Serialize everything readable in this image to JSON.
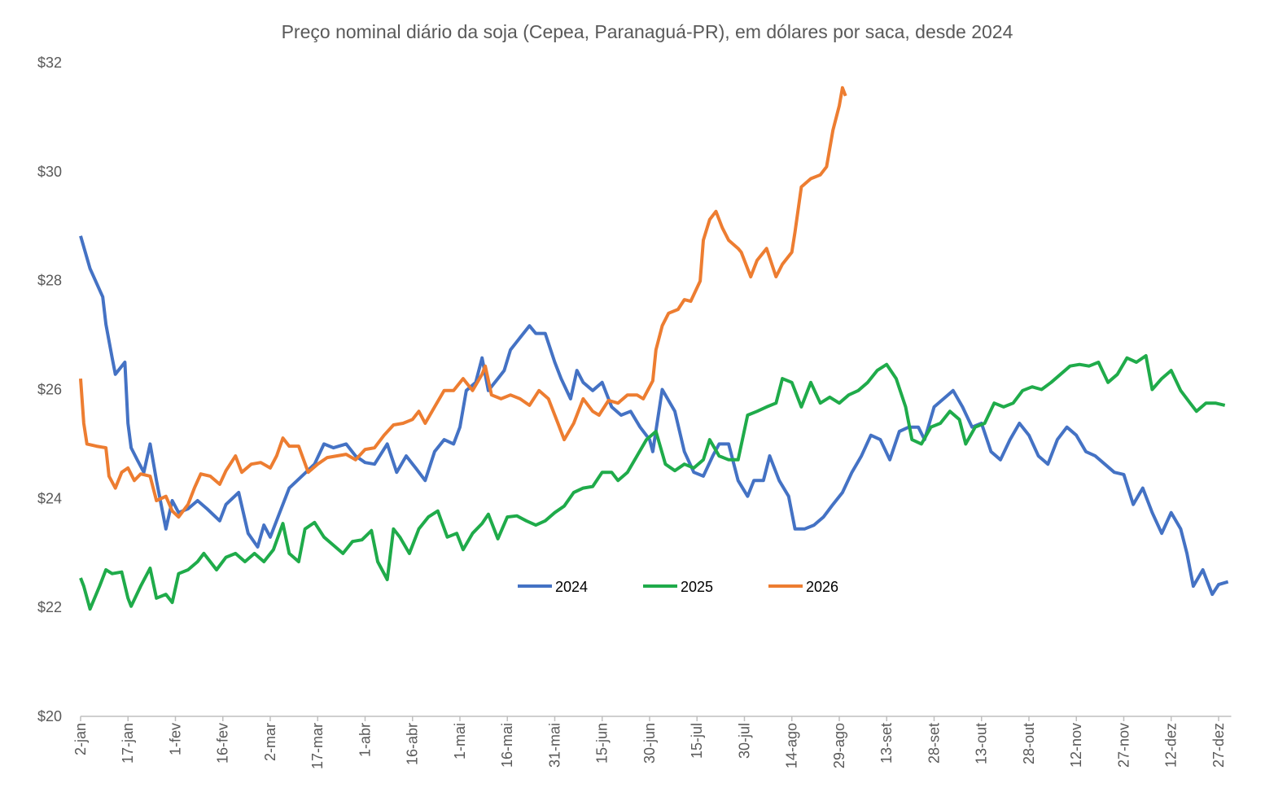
{
  "chart_data": {
    "type": "line",
    "title": "Preço nominal diário da soja (Cepea, Paranaguá-PR), em dólares por saca, desde 2024",
    "xlim": [
      0,
      364
    ],
    "xticks": [
      {
        "value": 0,
        "label": "2-jan"
      },
      {
        "value": 15,
        "label": "17-jan"
      },
      {
        "value": 30,
        "label": "1-fev"
      },
      {
        "value": 45,
        "label": "16-fev"
      },
      {
        "value": 60,
        "label": "2-mar"
      },
      {
        "value": 75,
        "label": "17-mar"
      },
      {
        "value": 90,
        "label": "1-abr"
      },
      {
        "value": 105,
        "label": "16-abr"
      },
      {
        "value": 120,
        "label": "1-mai"
      },
      {
        "value": 135,
        "label": "16-mai"
      },
      {
        "value": 150,
        "label": "31-mai"
      },
      {
        "value": 165,
        "label": "15-jun"
      },
      {
        "value": 180,
        "label": "30-jun"
      },
      {
        "value": 195,
        "label": "15-jul"
      },
      {
        "value": 210,
        "label": "30-jul"
      },
      {
        "value": 225,
        "label": "14-ago"
      },
      {
        "value": 240,
        "label": "29-ago"
      },
      {
        "value": 255,
        "label": "13-set"
      },
      {
        "value": 270,
        "label": "28-set"
      },
      {
        "value": 285,
        "label": "13-out"
      },
      {
        "value": 300,
        "label": "28-out"
      },
      {
        "value": 315,
        "label": "12-nov"
      },
      {
        "value": 330,
        "label": "27-nov"
      },
      {
        "value": 345,
        "label": "12-dez"
      },
      {
        "value": 360,
        "label": "27-dez"
      }
    ],
    "ylim": [
      20,
      32
    ],
    "yticks": [
      {
        "value": 20,
        "label": "$20"
      },
      {
        "value": 22,
        "label": "$22"
      },
      {
        "value": 24,
        "label": "$24"
      },
      {
        "value": 26,
        "label": "$26"
      },
      {
        "value": 28,
        "label": "$28"
      },
      {
        "value": 30,
        "label": "$30"
      },
      {
        "value": 32,
        "label": "$32"
      }
    ],
    "grid": false,
    "legend": "center",
    "series": [
      {
        "name": "2024",
        "color": "#4472c4",
        "x": [
          0,
          3,
          7,
          8,
          10,
          11,
          14,
          15,
          16,
          18,
          20,
          22,
          24,
          27,
          29,
          31,
          34,
          37,
          40,
          44,
          46,
          50,
          53,
          56,
          58,
          60,
          63,
          66,
          70,
          74,
          77,
          80,
          84,
          87,
          90,
          93,
          97,
          100,
          103,
          106,
          109,
          112,
          115,
          118,
          120,
          122,
          125,
          127,
          129,
          132,
          134,
          136,
          139,
          142,
          144,
          147,
          150,
          152,
          155,
          157,
          159,
          162,
          165,
          168,
          171,
          174,
          177,
          180,
          181,
          184,
          188,
          191,
          194,
          197,
          200,
          202,
          205,
          208,
          211,
          213,
          216,
          218,
          221,
          224,
          226,
          229,
          232,
          235,
          238,
          241,
          244,
          247,
          250,
          253,
          256,
          259,
          262,
          265,
          267,
          270,
          273,
          276,
          279,
          282,
          285,
          288,
          291,
          294,
          297,
          300,
          303,
          306,
          309,
          312,
          315,
          318,
          321,
          324,
          327,
          330,
          333,
          336,
          339,
          342,
          345,
          348,
          350,
          352,
          355,
          358,
          360,
          363
        ],
        "values": [
          28.82,
          28.22,
          27.7,
          27.2,
          26.58,
          26.28,
          26.5,
          25.38,
          24.93,
          24.7,
          24.48,
          25.0,
          24.33,
          23.44,
          23.96,
          23.74,
          23.81,
          23.96,
          23.81,
          23.59,
          23.89,
          24.11,
          23.36,
          23.11,
          23.51,
          23.29,
          23.74,
          24.19,
          24.41,
          24.63,
          25.0,
          24.93,
          25.0,
          24.78,
          24.66,
          24.63,
          25.0,
          24.48,
          24.78,
          24.56,
          24.33,
          24.86,
          25.08,
          25.0,
          25.31,
          25.98,
          26.13,
          26.58,
          25.98,
          26.2,
          26.35,
          26.73,
          26.95,
          27.17,
          27.03,
          27.03,
          26.5,
          26.2,
          25.83,
          26.35,
          26.13,
          25.98,
          26.13,
          25.68,
          25.53,
          25.6,
          25.31,
          25.08,
          24.86,
          26.0,
          25.6,
          24.86,
          24.48,
          24.41,
          24.78,
          25.0,
          25.0,
          24.33,
          24.04,
          24.33,
          24.33,
          24.78,
          24.33,
          24.04,
          23.44,
          23.44,
          23.51,
          23.66,
          23.89,
          24.11,
          24.48,
          24.78,
          25.16,
          25.08,
          24.71,
          25.23,
          25.31,
          25.31,
          25.08,
          25.68,
          25.83,
          25.98,
          25.68,
          25.31,
          25.38,
          24.86,
          24.71,
          25.08,
          25.38,
          25.16,
          24.78,
          24.63,
          25.08,
          25.31,
          25.16,
          24.86,
          24.78,
          24.63,
          24.48,
          24.44,
          23.89,
          24.19,
          23.74,
          23.36,
          23.74,
          23.44,
          22.99,
          22.39,
          22.69,
          22.24,
          22.42,
          22.47
        ]
      },
      {
        "name": "2025",
        "color": "#1fab4a",
        "x": [
          0,
          1,
          3,
          6,
          8,
          10,
          13,
          15,
          16,
          19,
          22,
          24,
          27,
          29,
          31,
          34,
          37,
          39,
          43,
          46,
          49,
          52,
          55,
          58,
          61,
          64,
          66,
          69,
          71,
          74,
          77,
          80,
          83,
          86,
          89,
          92,
          94,
          97,
          99,
          101,
          104,
          107,
          110,
          113,
          116,
          119,
          121,
          124,
          127,
          129,
          132,
          135,
          138,
          141,
          144,
          147,
          150,
          153,
          156,
          159,
          162,
          165,
          168,
          170,
          173,
          176,
          179,
          182,
          185,
          188,
          191,
          194,
          197,
          199,
          202,
          205,
          208,
          211,
          214,
          217,
          220,
          222,
          225,
          228,
          231,
          234,
          237,
          240,
          243,
          246,
          249,
          252,
          255,
          258,
          261,
          263,
          266,
          269,
          272,
          275,
          278,
          280,
          283,
          286,
          289,
          292,
          295,
          298,
          301,
          304,
          307,
          310,
          313,
          316,
          319,
          322,
          325,
          328,
          331,
          334,
          337,
          339,
          342,
          345,
          348,
          351,
          353,
          356,
          359,
          362
        ],
        "values": [
          22.54,
          22.39,
          21.97,
          22.39,
          22.69,
          22.62,
          22.65,
          22.17,
          22.02,
          22.39,
          22.72,
          22.17,
          22.24,
          22.09,
          22.62,
          22.69,
          22.84,
          22.99,
          22.69,
          22.92,
          22.99,
          22.84,
          22.99,
          22.84,
          23.06,
          23.54,
          22.99,
          22.84,
          23.44,
          23.56,
          23.29,
          23.14,
          22.99,
          23.21,
          23.24,
          23.41,
          22.84,
          22.51,
          23.44,
          23.29,
          22.99,
          23.44,
          23.66,
          23.77,
          23.29,
          23.36,
          23.06,
          23.36,
          23.54,
          23.71,
          23.26,
          23.66,
          23.68,
          23.59,
          23.51,
          23.59,
          23.74,
          23.86,
          24.11,
          24.19,
          24.22,
          24.48,
          24.48,
          24.33,
          24.48,
          24.78,
          25.08,
          25.23,
          24.63,
          24.51,
          24.63,
          24.56,
          24.71,
          25.08,
          24.78,
          24.71,
          24.71,
          25.53,
          25.6,
          25.68,
          25.75,
          26.2,
          26.13,
          25.68,
          26.13,
          25.75,
          25.86,
          25.75,
          25.9,
          25.98,
          26.13,
          26.35,
          26.46,
          26.2,
          25.68,
          25.08,
          25.0,
          25.31,
          25.38,
          25.6,
          25.45,
          25.0,
          25.31,
          25.38,
          25.75,
          25.68,
          25.75,
          25.98,
          26.05,
          26.0,
          26.13,
          26.28,
          26.43,
          26.46,
          26.43,
          26.5,
          26.13,
          26.28,
          26.58,
          26.5,
          26.62,
          26.0,
          26.2,
          26.35,
          25.98,
          25.75,
          25.6,
          25.75,
          25.75,
          25.71
        ]
      },
      {
        "name": "2026",
        "color": "#ed7d31",
        "x": [
          0,
          1,
          2,
          5,
          8,
          9,
          11,
          13,
          15,
          17,
          19,
          22,
          24,
          27,
          29,
          31,
          34,
          36,
          38,
          41,
          44,
          46,
          49,
          51,
          54,
          57,
          60,
          62,
          64,
          66,
          69,
          72,
          75,
          78,
          81,
          84,
          87,
          90,
          93,
          96,
          99,
          102,
          105,
          107,
          109,
          112,
          115,
          118,
          121,
          124,
          127,
          128,
          130,
          133,
          136,
          139,
          142,
          145,
          148,
          151,
          153,
          156,
          159,
          162,
          164,
          167,
          170,
          173,
          176,
          178,
          181,
          182,
          184,
          186,
          189,
          191,
          193,
          196,
          197,
          199,
          201,
          203,
          205,
          208,
          209,
          212,
          214,
          217,
          220,
          222,
          225,
          226,
          228,
          231,
          234,
          236,
          238,
          240,
          241,
          242
        ],
        "values": [
          26.2,
          25.38,
          25.0,
          24.96,
          24.93,
          24.41,
          24.19,
          24.48,
          24.56,
          24.33,
          24.45,
          24.41,
          23.96,
          24.04,
          23.77,
          23.66,
          23.89,
          24.19,
          24.45,
          24.41,
          24.26,
          24.51,
          24.78,
          24.48,
          24.63,
          24.66,
          24.56,
          24.78,
          25.11,
          24.96,
          24.96,
          24.48,
          24.63,
          24.75,
          24.78,
          24.81,
          24.71,
          24.9,
          24.93,
          25.16,
          25.35,
          25.38,
          25.45,
          25.6,
          25.38,
          25.68,
          25.98,
          25.98,
          26.2,
          25.98,
          26.28,
          26.43,
          25.9,
          25.83,
          25.9,
          25.83,
          25.71,
          25.98,
          25.83,
          25.38,
          25.08,
          25.38,
          25.83,
          25.6,
          25.53,
          25.8,
          25.75,
          25.9,
          25.9,
          25.83,
          26.16,
          26.73,
          27.17,
          27.4,
          27.47,
          27.65,
          27.62,
          27.99,
          28.74,
          29.12,
          29.27,
          28.97,
          28.74,
          28.59,
          28.52,
          28.07,
          28.37,
          28.59,
          28.07,
          28.3,
          28.52,
          28.89,
          29.72,
          29.87,
          29.94,
          30.09,
          30.76,
          31.21,
          31.54,
          31.39
        ]
      }
    ]
  }
}
